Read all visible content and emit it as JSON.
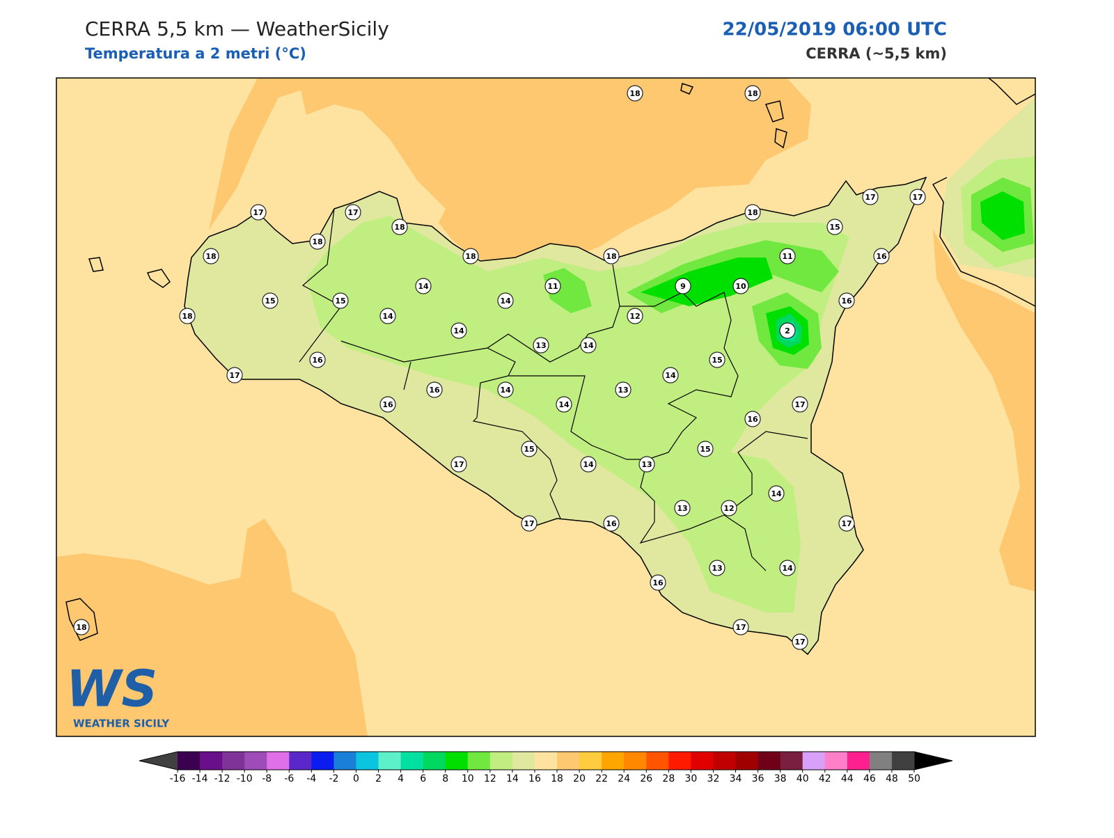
{
  "header": {
    "title": "CERRA 5,5 km — WeatherSicily",
    "subtitle": "Temperatura a 2 metri (°C)",
    "datetime": "22/05/2019 06:00 UTC",
    "model": "CERRA (~5,5 km)"
  },
  "logo": {
    "mark": "WS",
    "text": "WEATHER SICILY"
  },
  "stations": [
    18,
    18,
    17,
    17,
    17,
    17,
    18,
    18,
    15,
    18,
    18,
    18,
    18,
    11,
    16,
    14,
    11,
    9,
    10,
    15,
    15,
    14,
    16,
    18,
    14,
    12,
    14,
    2,
    13,
    14,
    16,
    15,
    17,
    14,
    16,
    14,
    13,
    16,
    14,
    17,
    16,
    15,
    15,
    17,
    14,
    13,
    14,
    13,
    12,
    17,
    16,
    17,
    13,
    14,
    16,
    17,
    17,
    18
  ],
  "colorbar": {
    "ticks": [
      -16,
      -14,
      -12,
      -10,
      -8,
      -6,
      -4,
      -2,
      0,
      2,
      4,
      6,
      8,
      10,
      12,
      14,
      16,
      18,
      20,
      22,
      24,
      26,
      28,
      30,
      32,
      34,
      36,
      38,
      40,
      42,
      44,
      46,
      48,
      50
    ],
    "colors": [
      "#3b0050",
      "#6a0f8a",
      "#7f3399",
      "#9d4cb8",
      "#e070e8",
      "#5a28c8",
      "#0a1cf0",
      "#1a7fd8",
      "#0bc4e0",
      "#5ef0c8",
      "#00e0a0",
      "#00d860",
      "#00e000",
      "#70e840",
      "#c0ee80",
      "#e0e8a0",
      "#fee3a0",
      "#fdc870",
      "#ffcc40",
      "#ffa500",
      "#ff8800",
      "#ff5500",
      "#ff1a00",
      "#e00000",
      "#c00000",
      "#a00000",
      "#700018",
      "#7a1f40",
      "#d8a0f8",
      "#ff80c8",
      "#ff2090",
      "#808080",
      "#404040"
    ],
    "under": "#404040",
    "over": "#000000"
  }
}
